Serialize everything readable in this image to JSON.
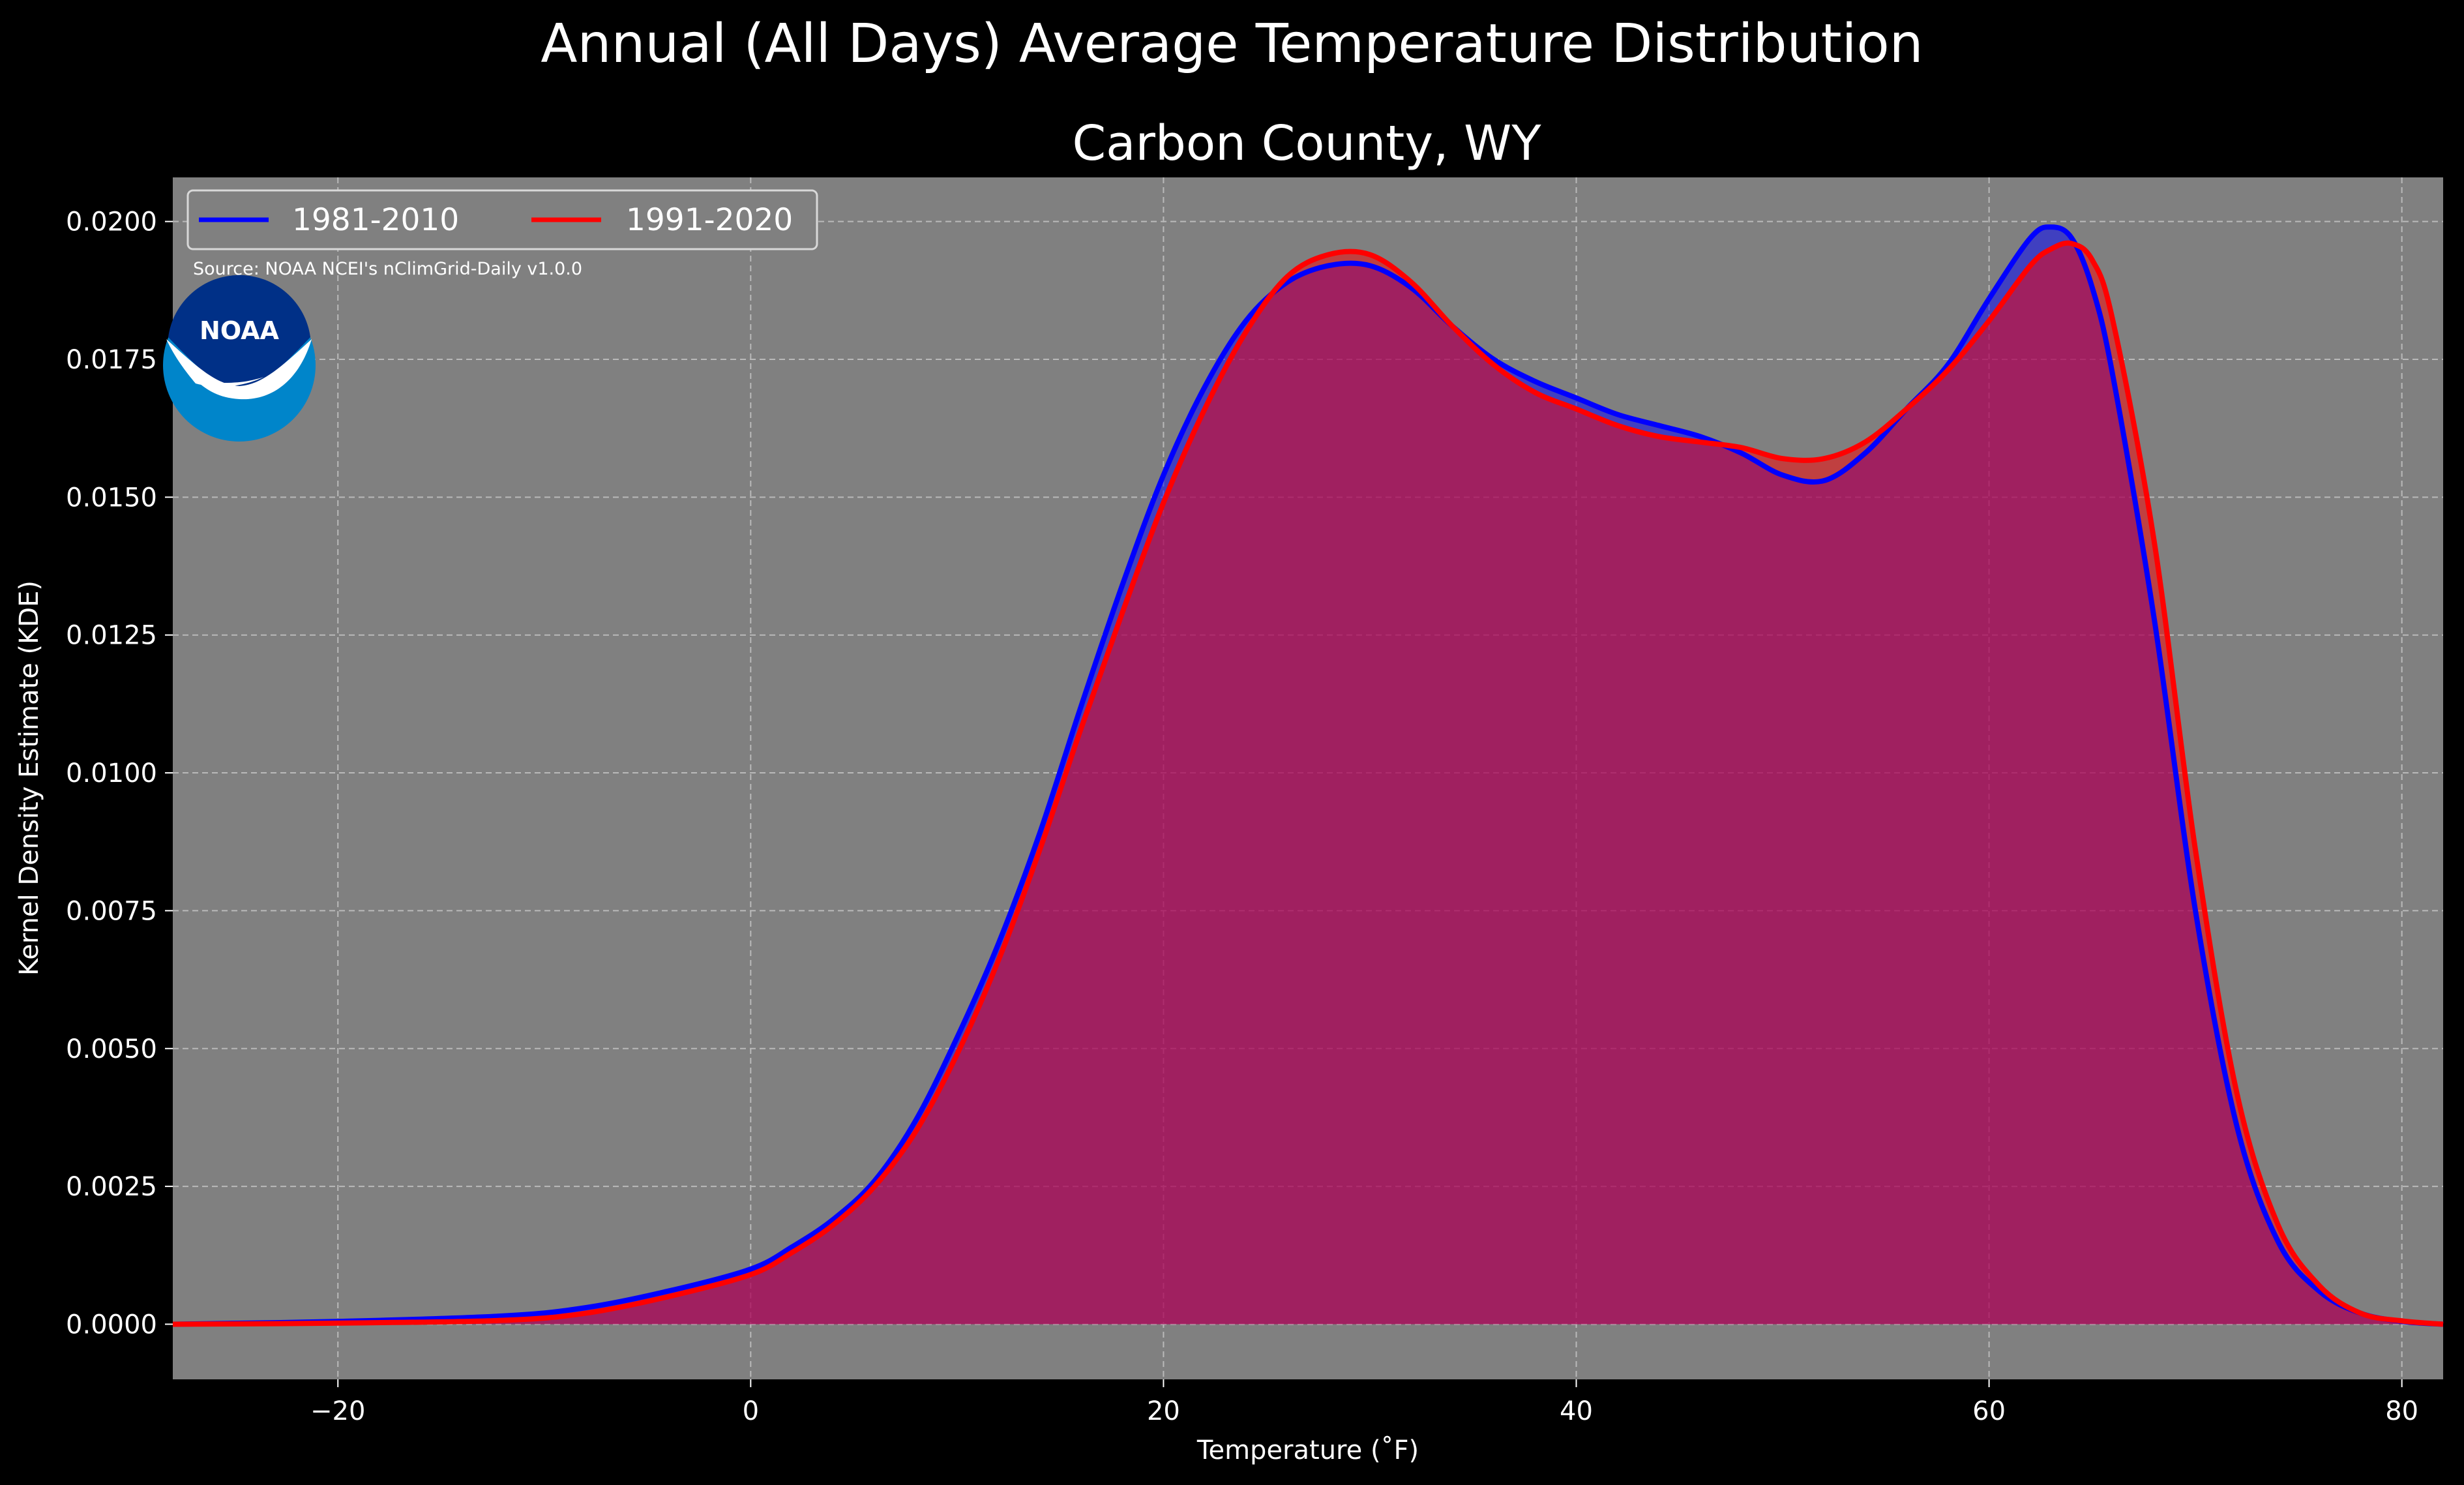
{
  "figure": {
    "title": "Annual (All Days) Average Temperature Distribution",
    "background": "#000000",
    "plot_background": "#808080"
  },
  "source_note": "Source: NOAA NCEI's nClimGrid-Daily v1.0.0",
  "logo": {
    "text": "NOAA",
    "outer_color": "#0085CA",
    "inner_color": "#003087"
  },
  "chart_data": {
    "type": "area",
    "title": "Carbon County, WY",
    "xlabel": "Temperature (˚F)",
    "ylabel": "Kernel Density Estimate (KDE)",
    "xlim": [
      -28,
      82
    ],
    "ylim": [
      -0.001,
      0.0208
    ],
    "xticks": [
      -20,
      0,
      20,
      40,
      60,
      80
    ],
    "xtick_labels": [
      "−20",
      "0",
      "20",
      "40",
      "60",
      "80"
    ],
    "yticks": [
      0,
      0.0025,
      0.005,
      0.0075,
      0.01,
      0.0125,
      0.015,
      0.0175,
      0.02
    ],
    "ytick_labels": [
      "0.0000",
      "0.0025",
      "0.0050",
      "0.0075",
      "0.0100",
      "0.0125",
      "0.0150",
      "0.0175",
      "0.0200"
    ],
    "grid": true,
    "legend_placement": "top-left",
    "series": [
      {
        "name": "1981-2010",
        "color": "#0000ff",
        "x": [
          -28,
          -20,
          -12,
          -8,
          -4,
          0,
          2,
          4,
          6,
          8,
          10,
          12,
          14,
          16,
          18,
          20,
          22,
          24,
          26,
          28,
          30,
          32,
          34,
          36,
          38,
          40,
          42,
          44,
          46,
          48,
          50,
          52,
          54,
          56,
          58,
          60,
          62,
          63,
          64,
          65,
          66,
          68,
          70,
          72,
          74,
          76,
          78,
          80,
          82
        ],
        "y": [
          0.0,
          5e-05,
          0.00015,
          0.0003,
          0.0006,
          0.001,
          0.0014,
          0.0019,
          0.0026,
          0.0037,
          0.0052,
          0.0069,
          0.0089,
          0.0112,
          0.0134,
          0.0154,
          0.017,
          0.0182,
          0.0189,
          0.0192,
          0.0192,
          0.0188,
          0.0181,
          0.0175,
          0.0171,
          0.0168,
          0.0165,
          0.0163,
          0.0161,
          0.0158,
          0.0154,
          0.0153,
          0.0158,
          0.0166,
          0.0174,
          0.0186,
          0.0197,
          0.0199,
          0.0197,
          0.0188,
          0.0172,
          0.0128,
          0.0075,
          0.0036,
          0.0015,
          0.0006,
          0.0002,
          5e-05,
          0.0
        ]
      },
      {
        "name": "1991-2020",
        "color": "#ff0000",
        "x": [
          -28,
          -20,
          -12,
          -8,
          -4,
          0,
          2,
          4,
          6,
          8,
          10,
          12,
          14,
          16,
          18,
          20,
          22,
          24,
          26,
          28,
          30,
          32,
          34,
          36,
          38,
          40,
          42,
          44,
          46,
          48,
          50,
          52,
          54,
          56,
          58,
          60,
          62,
          63,
          64,
          65,
          66,
          68,
          70,
          72,
          74,
          76,
          78,
          80,
          82
        ],
        "y": [
          0.0,
          2e-05,
          7e-05,
          0.0002,
          0.0005,
          0.0009,
          0.0013,
          0.0018,
          0.0025,
          0.0035,
          0.0049,
          0.0066,
          0.0086,
          0.0108,
          0.0129,
          0.0149,
          0.0166,
          0.018,
          0.019,
          0.0194,
          0.0194,
          0.0189,
          0.0181,
          0.0174,
          0.0169,
          0.0166,
          0.0163,
          0.0161,
          0.016,
          0.0159,
          0.0157,
          0.0157,
          0.016,
          0.0166,
          0.0173,
          0.0182,
          0.0192,
          0.0195,
          0.0196,
          0.0193,
          0.0182,
          0.0142,
          0.0086,
          0.0042,
          0.0018,
          0.0007,
          0.0002,
          6e-05,
          0.0
        ]
      }
    ]
  }
}
